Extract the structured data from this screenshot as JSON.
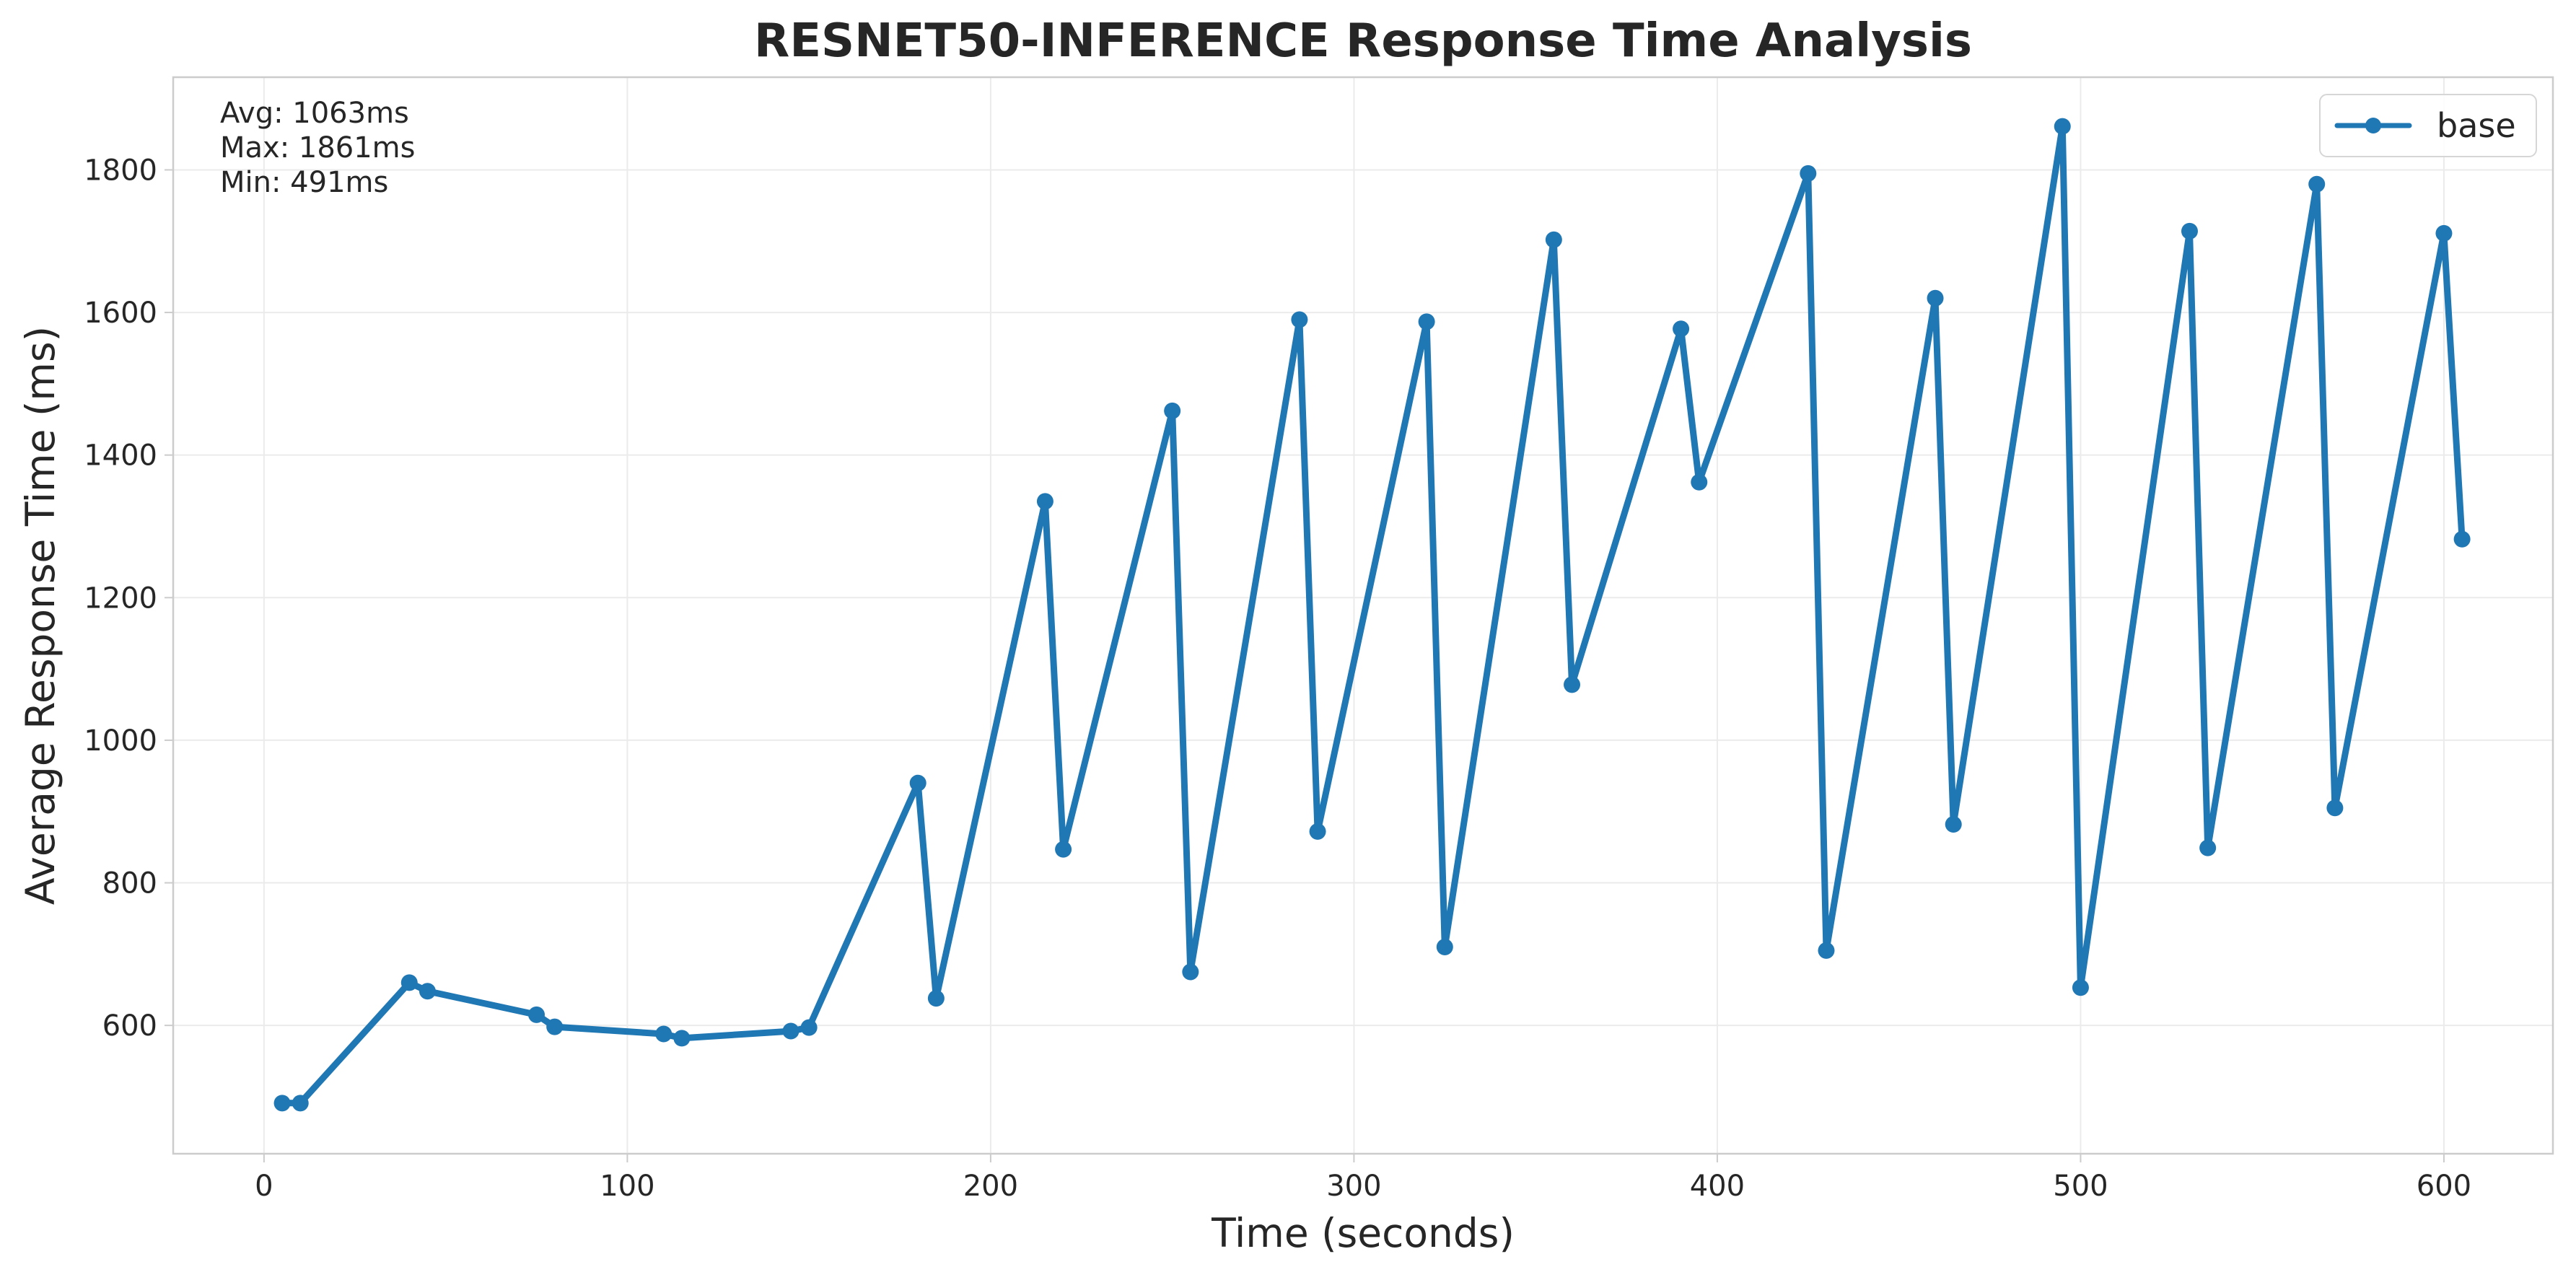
{
  "chart_data": {
    "type": "line",
    "title": "RESNET50-INFERENCE Response Time Analysis",
    "xlabel": "Time (seconds)",
    "ylabel": "Average Response Time (ms)",
    "xlim": [
      -25,
      630
    ],
    "ylim": [
      420,
      1930
    ],
    "xticks": [
      0,
      100,
      200,
      300,
      400,
      500,
      600
    ],
    "yticks": [
      600,
      800,
      1000,
      1200,
      1400,
      1600,
      1800
    ],
    "grid": true,
    "legend_position": "top-right",
    "stats": {
      "avg": "Avg: 1063ms",
      "max": "Max: 1861ms",
      "min": "Min: 491ms"
    },
    "series": [
      {
        "name": "base",
        "color": "#1f77b4",
        "x": [
          5,
          10,
          40,
          45,
          75,
          80,
          110,
          115,
          145,
          150,
          180,
          185,
          215,
          220,
          250,
          255,
          285,
          290,
          320,
          325,
          355,
          360,
          390,
          395,
          425,
          430,
          460,
          465,
          495,
          500,
          530,
          535,
          565,
          570,
          600,
          605
        ],
        "y": [
          491,
          491,
          660,
          648,
          615,
          598,
          588,
          582,
          592,
          597,
          940,
          638,
          1335,
          847,
          1462,
          675,
          1590,
          872,
          1587,
          710,
          1702,
          1078,
          1577,
          1362,
          1795,
          705,
          1620,
          882,
          1861,
          653,
          1714,
          849,
          1780,
          905,
          1711,
          1282
        ]
      }
    ]
  }
}
